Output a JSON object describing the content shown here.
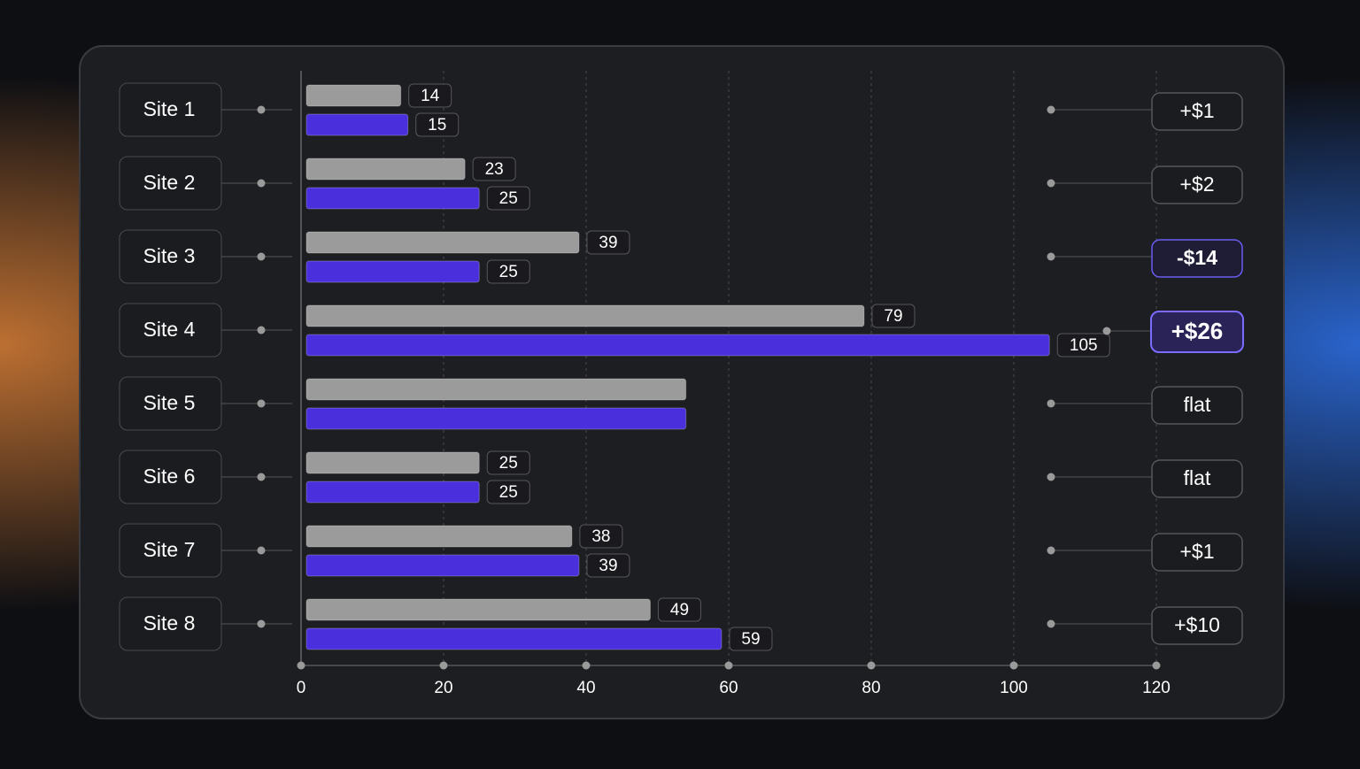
{
  "chart_data": {
    "type": "bar",
    "orientation": "horizontal",
    "categories": [
      "Site 1",
      "Site 2",
      "Site 3",
      "Site 4",
      "Site 5",
      "Site 6",
      "Site 7",
      "Site 8"
    ],
    "series": [
      {
        "color": "#9b9b9b",
        "values": [
          14,
          23,
          39,
          79,
          54,
          25,
          38,
          49
        ],
        "value_labels": [
          "14",
          "23",
          "39",
          "79",
          null,
          "25",
          "38",
          "49"
        ]
      },
      {
        "color": "#4a30dc",
        "values": [
          15,
          25,
          25,
          105,
          54,
          25,
          39,
          59
        ],
        "value_labels": [
          "15",
          "25",
          "25",
          "105",
          null,
          "25",
          "39",
          "59"
        ]
      }
    ],
    "change_labels": [
      "+$1",
      "+$2",
      "-$14",
      "+$26",
      "flat",
      "flat",
      "+$1",
      "+$10"
    ],
    "change_colors": [
      "#ffffff",
      "#ffffff",
      "#6a5cf2",
      "#7b6cff",
      "#ffffff",
      "#ffffff",
      "#ffffff",
      "#ffffff"
    ],
    "xlim": [
      0,
      120
    ],
    "xticks": [
      0,
      20,
      40,
      60,
      80,
      100,
      120
    ],
    "grid": true
  }
}
